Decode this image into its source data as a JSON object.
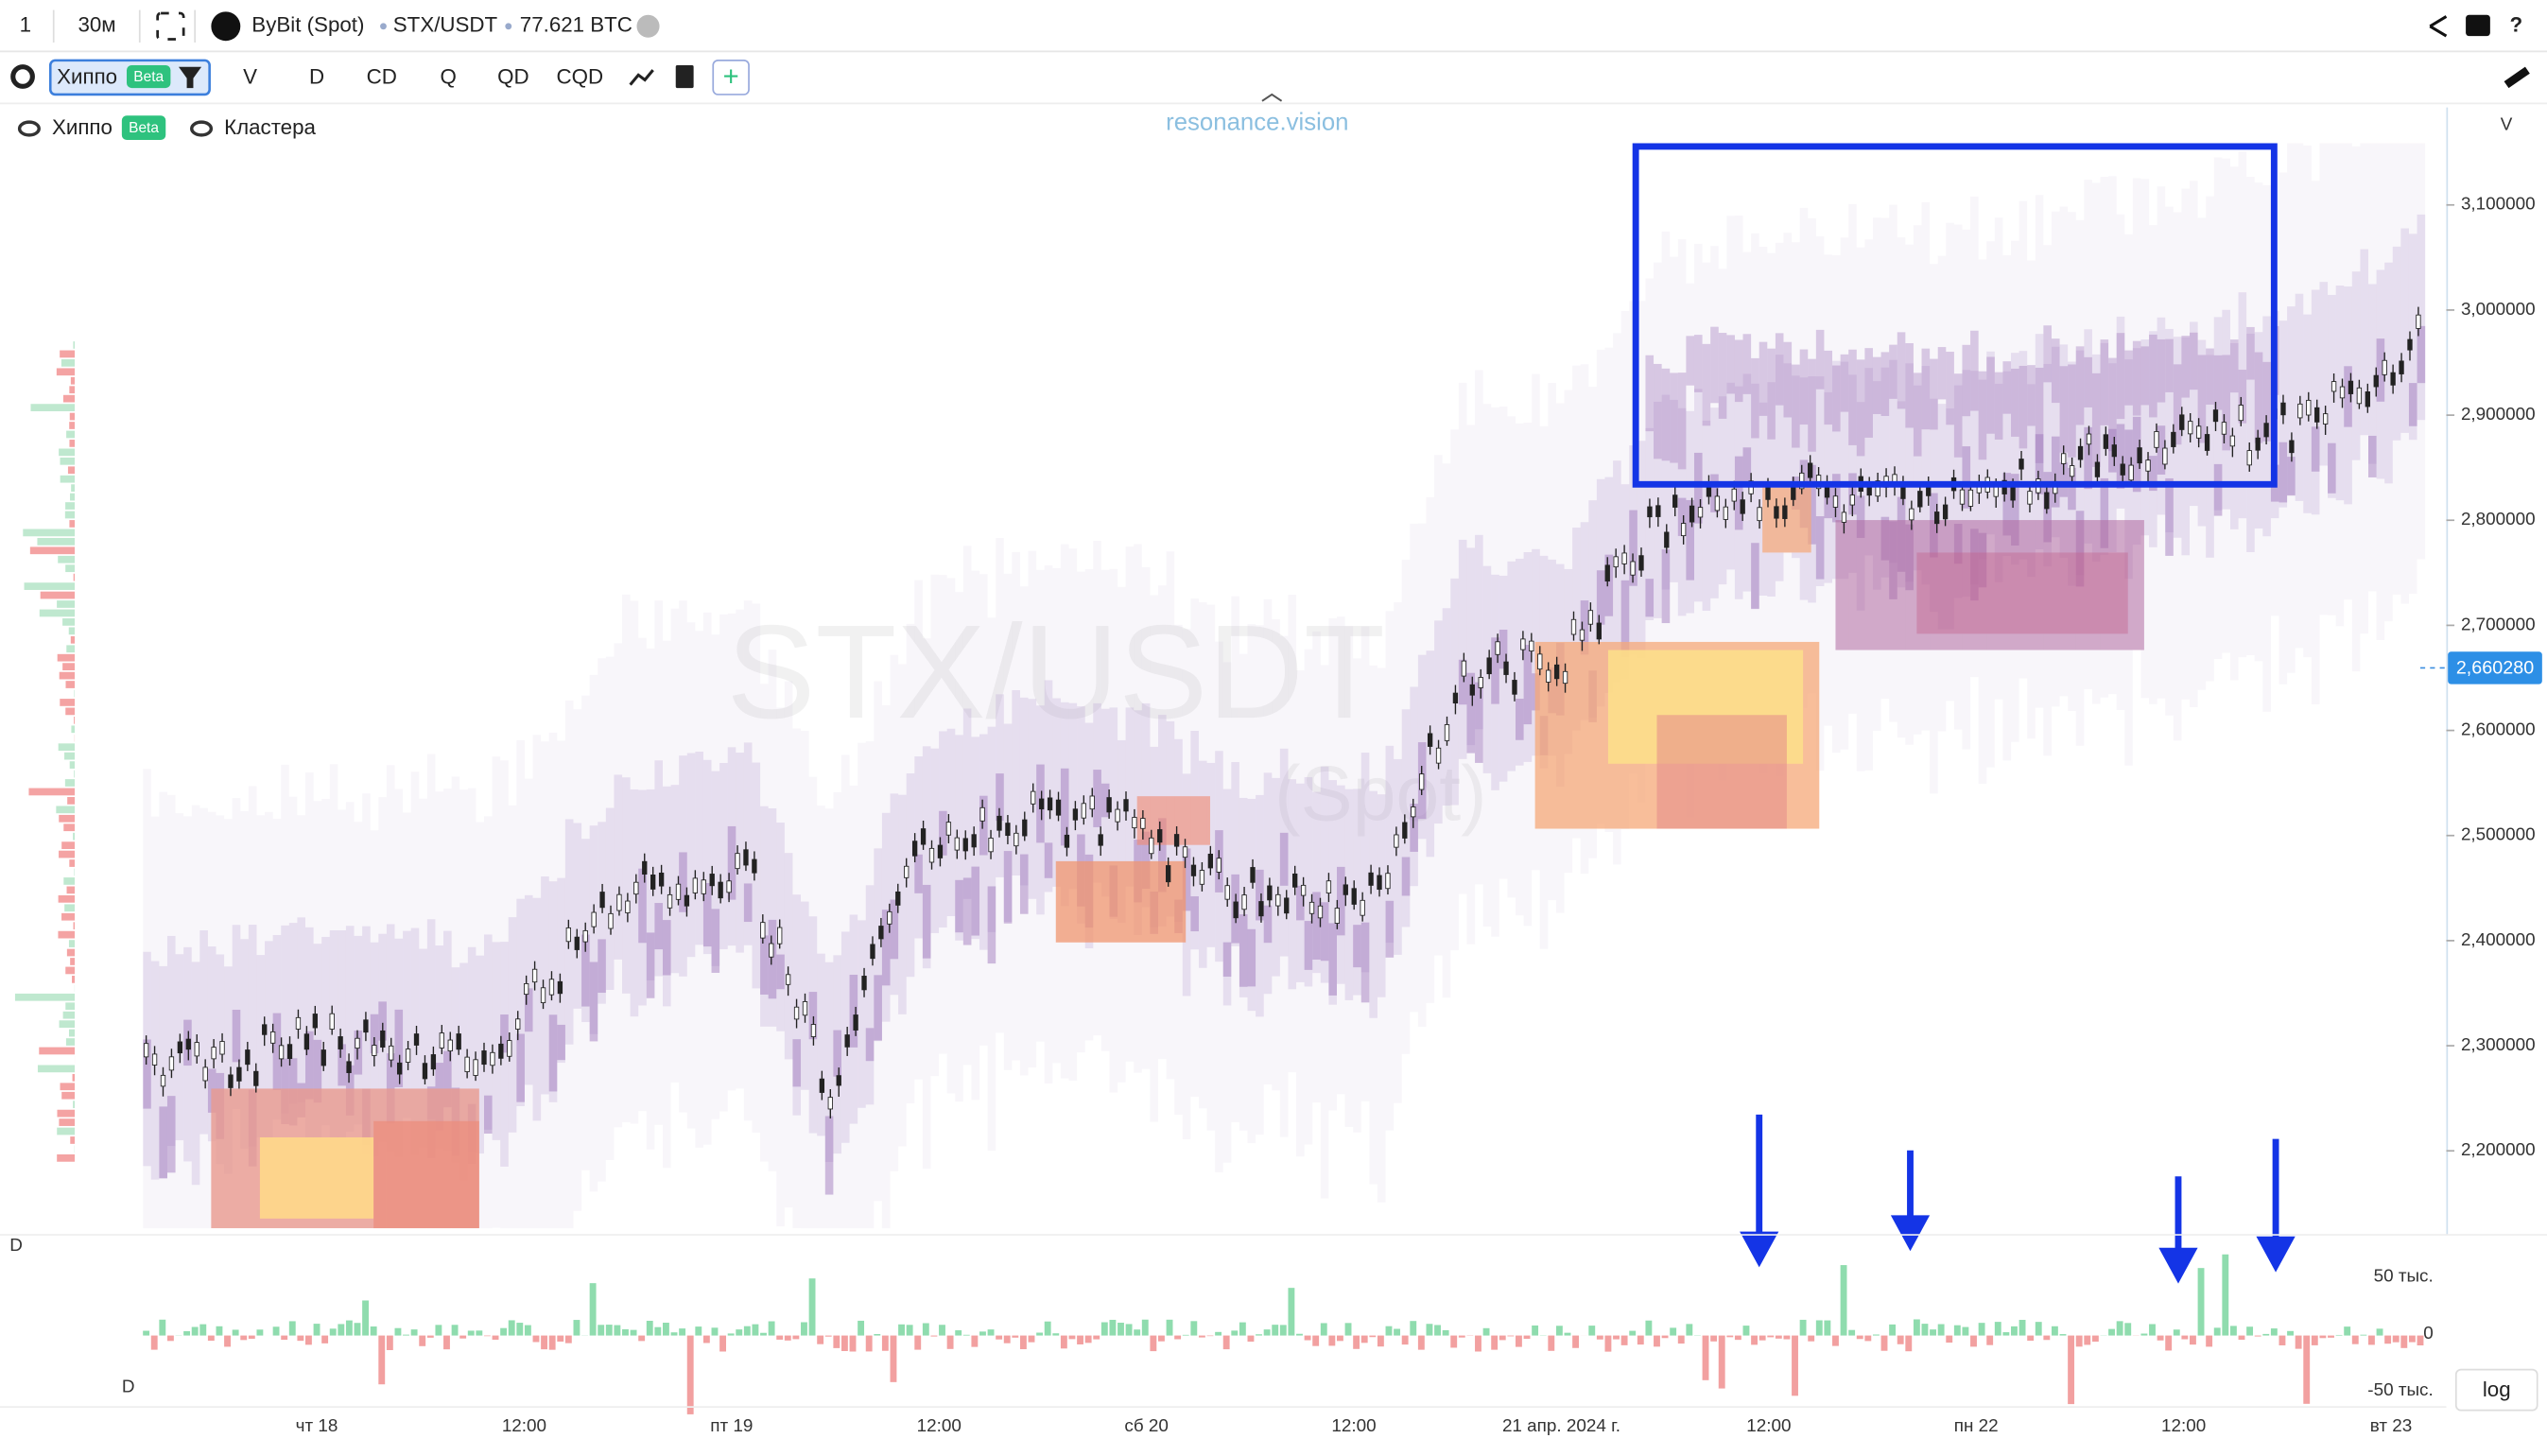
{
  "toolbar": {
    "interval_count": "1",
    "timeframe": "30м",
    "exchange": "ByBit (Spot)",
    "symbol": "STX/USDT",
    "volume": "77.621 BTC"
  },
  "indicator_bar": {
    "active": "Хиппо",
    "badge": "Beta",
    "buttons": [
      "V",
      "D",
      "CD",
      "Q",
      "QD",
      "CQD"
    ]
  },
  "legend": [
    {
      "label": "Хиппо",
      "badge": "Beta"
    },
    {
      "label": "Кластера"
    }
  ],
  "brand": "resonance.vision",
  "watermark": {
    "symbol": "STX/USDT",
    "exchange": "(Spot)"
  },
  "price_axis": {
    "label": "V",
    "ticks": [
      "3,100000",
      "3,000000",
      "2,900000",
      "2,800000",
      "2,700000",
      "2,600000",
      "2,500000",
      "2,400000",
      "2,300000",
      "2,200000"
    ],
    "current_price": "2,660280"
  },
  "delta_panel": {
    "label": "D",
    "sub_label": "D",
    "ticks": [
      "50 тыс.",
      "0",
      "-50 тыс."
    ],
    "scale_button": "log"
  },
  "time_axis": [
    "чт 18",
    "12:00",
    "пт 19",
    "12:00",
    "сб 20",
    "12:00",
    "21 апр. 2024 г.",
    "12:00",
    "пн 22",
    "12:00",
    "вт 23"
  ]
}
